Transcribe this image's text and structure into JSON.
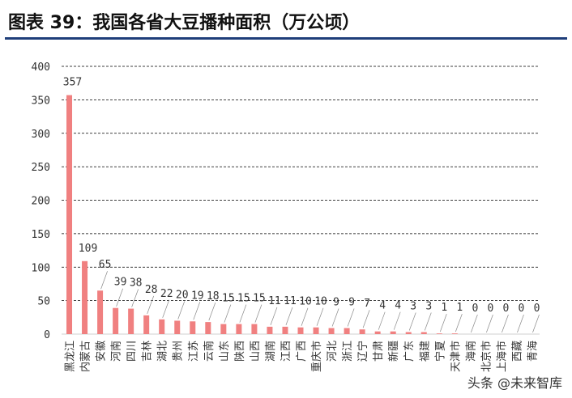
{
  "title": "图表 39：我国各省大豆播种面积（万公顷）",
  "watermark": "头条 @未来智库",
  "colors": {
    "bar": "#f08080",
    "grid": "#000000",
    "title_rule": "#1f3e7a",
    "text": "#333333"
  },
  "chart_data": {
    "type": "bar",
    "title": "",
    "xlabel": "",
    "ylabel": "",
    "ylim": [
      0,
      400
    ],
    "yticks": [
      0,
      50,
      100,
      150,
      200,
      250,
      300,
      350,
      400
    ],
    "grid": "dashed-horizontal",
    "legend": "none",
    "categories": [
      "黑龙江",
      "内蒙古",
      "安徽",
      "河南",
      "四川",
      "吉林",
      "湖北",
      "贵州",
      "江苏",
      "云南",
      "山东",
      "陕西",
      "山西",
      "湖南",
      "江西",
      "广西",
      "重庆市",
      "河北",
      "浙江",
      "辽宁",
      "甘肃",
      "新疆",
      "广东",
      "福建",
      "宁夏",
      "天津市",
      "海南",
      "北京市",
      "上海市",
      "西藏",
      "青海"
    ],
    "values": [
      357,
      109,
      65,
      39,
      38,
      28,
      22,
      20,
      19,
      18,
      15,
      15,
      15,
      11,
      11,
      10,
      10,
      9,
      9,
      7,
      4,
      4,
      3,
      3,
      1,
      1,
      0,
      0,
      0,
      0,
      0
    ]
  }
}
